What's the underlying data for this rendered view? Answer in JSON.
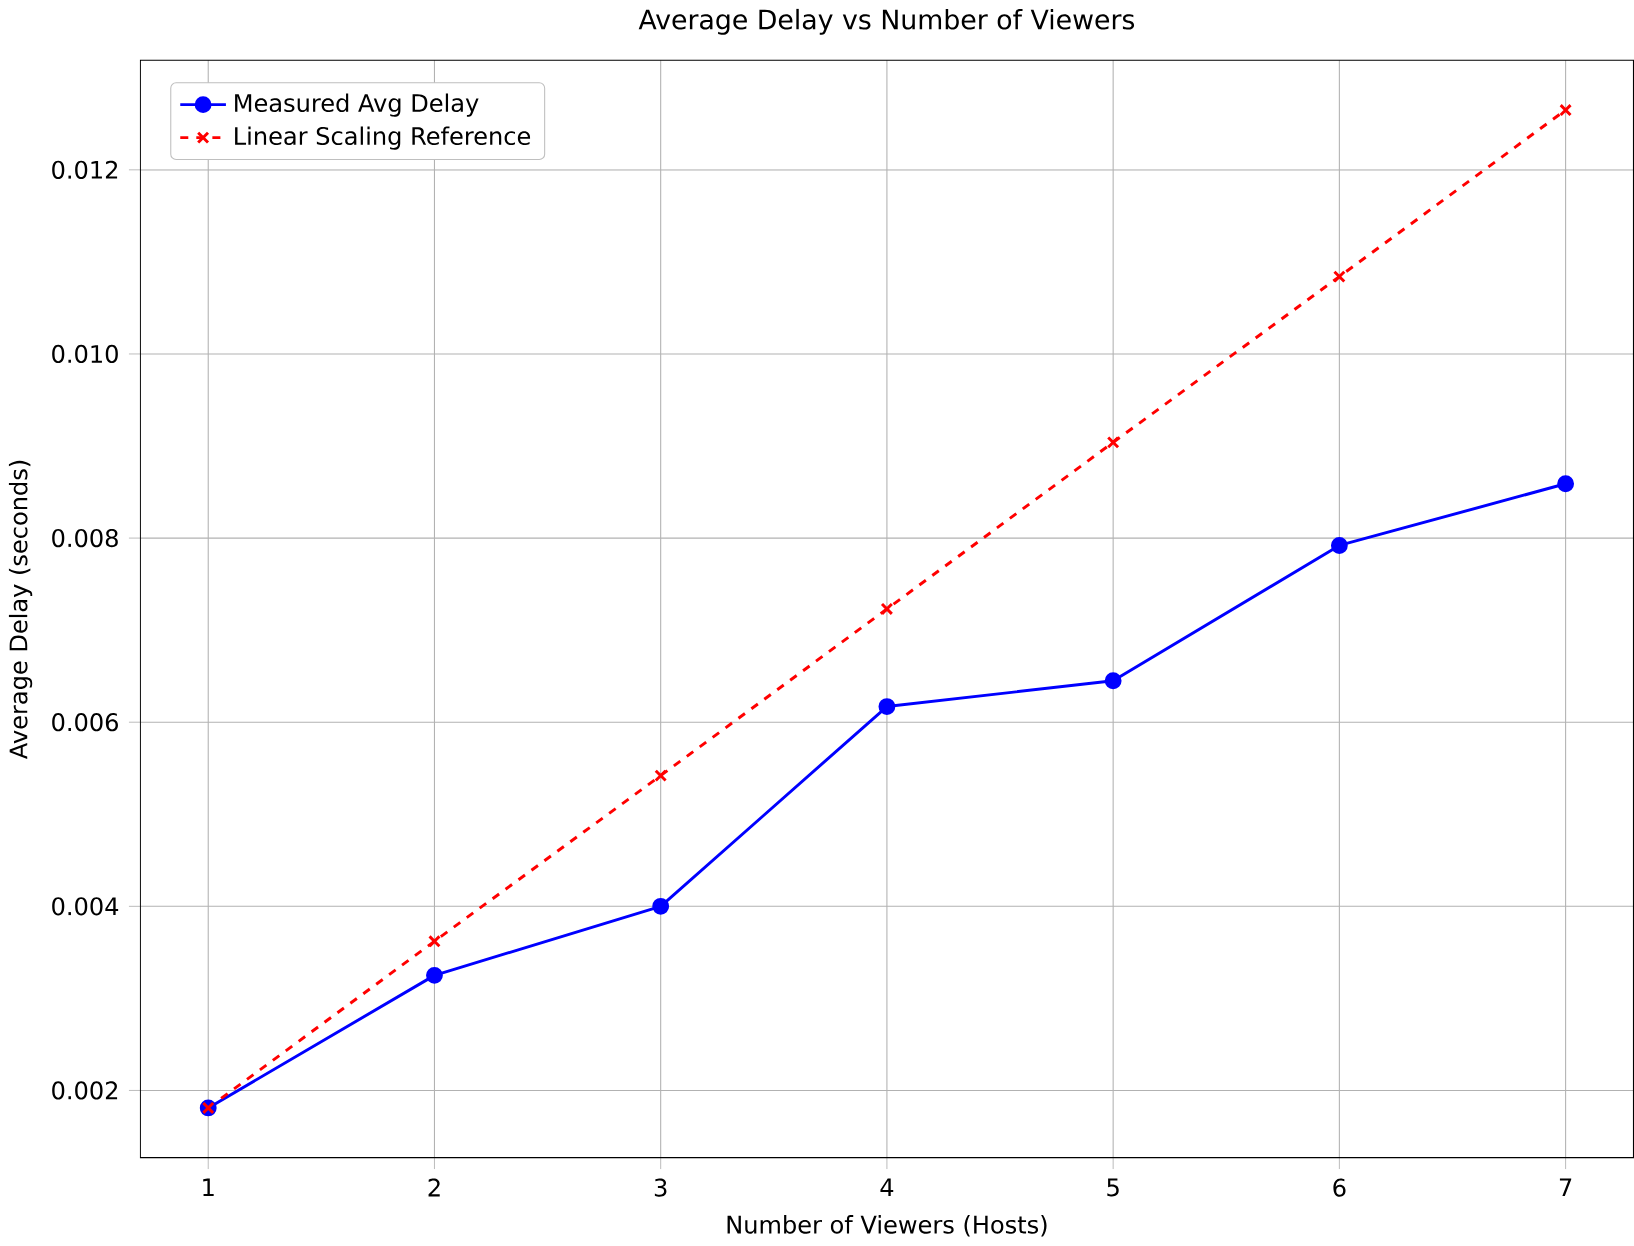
{
  "chart_data": {
    "type": "line",
    "title": "Average Delay vs Number of Viewers",
    "xlabel": "Number of Viewers (Hosts)",
    "ylabel": "Average Delay (seconds)",
    "x": [
      1,
      2,
      3,
      4,
      5,
      6,
      7
    ],
    "series": [
      {
        "name": "Measured Avg Delay",
        "color": "#0000ff",
        "values": [
          0.00181,
          0.00325,
          0.004,
          0.00617,
          0.00645,
          0.00792,
          0.00859
        ],
        "marker": "circle",
        "line_style": "solid"
      },
      {
        "name": "Linear Scaling Reference",
        "color": "#ff0000",
        "values": [
          0.00181,
          0.00362,
          0.00542,
          0.00723,
          0.00904,
          0.01084,
          0.01265
        ],
        "marker": "cross",
        "line_style": "dashed"
      }
    ],
    "xlim": [
      0.7,
      7.3
    ],
    "ylim": [
      0.00127,
      0.01319
    ],
    "xticks": [
      1,
      2,
      3,
      4,
      5,
      6,
      7
    ],
    "yticks": [
      0.002,
      0.004,
      0.006,
      0.008,
      {
        "value": 0.01,
        "label": "0.010"
      },
      0.012
    ],
    "grid": true,
    "legend": "top left"
  }
}
